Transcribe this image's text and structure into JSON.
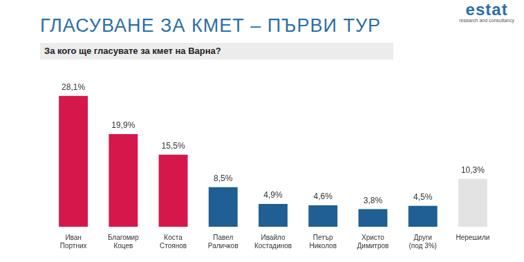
{
  "chart_data": {
    "type": "bar",
    "title": "ГЛАСУВАНЕ ЗА КМЕТ – ПЪРВИ ТУР",
    "subtitle": "За кого ще гласувате за кмет на Варна?",
    "annotations": [
      "estat",
      "research and consultancy"
    ],
    "categories": [
      "Иван Портних",
      "Благомир Коцев",
      "Коста Стоянов",
      "Павел Раличков",
      "Ивайло Костадинов",
      "Петър Николов",
      "Христо Димитров",
      "Други (под 3%)",
      "Нерешили"
    ],
    "values": [
      28.1,
      19.9,
      15.5,
      8.5,
      4.9,
      4.6,
      3.8,
      4.5,
      10.3
    ],
    "value_labels": [
      "28,1%",
      "19,9%",
      "15,5%",
      "8,5%",
      "4,9%",
      "4,6%",
      "3,8%",
      "4,5%",
      "10,3%"
    ],
    "colors": [
      "#d6174b",
      "#d6174b",
      "#d6174b",
      "#1f5f93",
      "#1f5f93",
      "#1f5f93",
      "#1f5f93",
      "#1f5f93",
      "#e3e3e3"
    ],
    "data_labels": true,
    "grid": false,
    "tick_labels": "x"
  }
}
